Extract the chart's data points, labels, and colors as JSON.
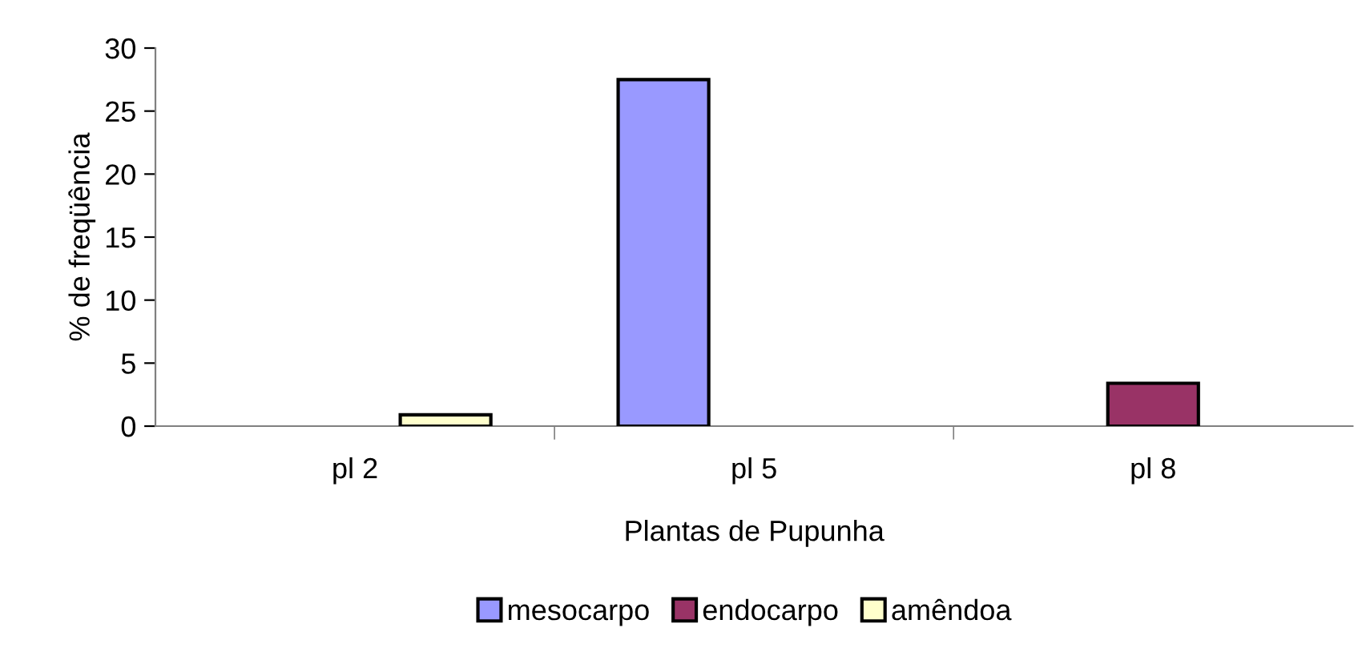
{
  "chart_data": {
    "type": "bar",
    "xlabel": "Plantas de Pupunha",
    "ylabel": "% de freqüência",
    "categories": [
      "pl 2",
      "pl 5",
      "pl 8"
    ],
    "series": [
      {
        "name": "mesocarpo",
        "color": "#9999ff",
        "values": [
          null,
          27.5,
          null
        ]
      },
      {
        "name": "endocarpo",
        "color": "#993366",
        "values": [
          null,
          null,
          3.4
        ]
      },
      {
        "name": "amêndoa",
        "color": "#ffffcc",
        "values": [
          0.9,
          null,
          null
        ]
      }
    ],
    "ylim": [
      0,
      30
    ],
    "yticks": [
      0,
      5,
      10,
      15,
      20,
      25,
      30
    ],
    "grid": false,
    "legend": "bottom"
  }
}
